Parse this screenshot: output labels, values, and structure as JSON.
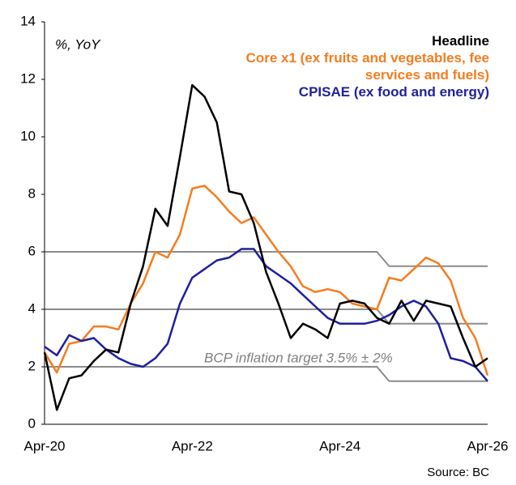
{
  "chart_data": {
    "type": "line",
    "subtitle": "%, YoY",
    "annotation": "BCP inflation target 3.5% ± 2%",
    "source": "Source: BC",
    "categories": [
      "Apr-20",
      null,
      null,
      null,
      null,
      null,
      null,
      null,
      null,
      null,
      null,
      null,
      "Apr-22",
      null,
      null,
      null,
      null,
      null,
      null,
      null,
      null,
      null,
      null,
      null,
      "Apr-24",
      null,
      null,
      null,
      null,
      null,
      null,
      null,
      null,
      null,
      null,
      null,
      "Apr-26"
    ],
    "ylim": [
      0,
      14
    ],
    "yticks": [
      0,
      2,
      4,
      6,
      8,
      10,
      12,
      14
    ],
    "series": [
      {
        "name": "Headline",
        "color": "#000000",
        "values": [
          2.5,
          0.5,
          1.6,
          1.7,
          2.2,
          2.6,
          2.5,
          4.2,
          5.5,
          7.5,
          6.9,
          9.3,
          11.8,
          11.4,
          10.5,
          8.1,
          8.0,
          7.0,
          5.3,
          4.2,
          3.0,
          3.5,
          3.3,
          3.0,
          4.2,
          4.3,
          4.2,
          3.7,
          3.5,
          4.3,
          3.6,
          4.3,
          4.2,
          4.1,
          3.0,
          2.0,
          2.3
        ]
      },
      {
        "name": "Core x1 (ex fruits and vegetables, fee services and fuels)",
        "color": "#f57c1f",
        "values": [
          2.5,
          1.8,
          2.8,
          2.9,
          3.4,
          3.4,
          3.3,
          4.2,
          4.9,
          6.0,
          5.8,
          6.6,
          8.2,
          8.3,
          7.9,
          7.4,
          7.0,
          7.2,
          6.6,
          6.0,
          5.5,
          4.8,
          4.6,
          4.7,
          4.6,
          4.2,
          4.1,
          4.0,
          5.1,
          5.0,
          5.4,
          5.8,
          5.6,
          5.0,
          3.7,
          3.0,
          1.7
        ]
      },
      {
        "name": "CPISAE (ex food and energy)",
        "color": "#1f1f9e",
        "values": [
          2.7,
          2.4,
          3.1,
          2.9,
          3.0,
          2.6,
          2.3,
          2.1,
          2.0,
          2.3,
          2.8,
          4.2,
          5.1,
          5.4,
          5.7,
          5.8,
          6.1,
          6.1,
          5.5,
          5.2,
          4.9,
          4.5,
          4.1,
          3.7,
          3.5,
          3.5,
          3.5,
          3.6,
          3.8,
          4.1,
          4.3,
          4.1,
          3.5,
          2.3,
          2.2,
          2.0,
          1.5
        ]
      }
    ],
    "target_lines": {
      "color": "#8c8c8c",
      "series": [
        {
          "values": [
            6,
            6,
            6,
            6,
            6,
            6,
            6,
            6,
            6,
            6,
            6,
            6,
            6,
            6,
            6,
            6,
            6,
            6,
            6,
            6,
            6,
            6,
            6,
            6,
            6,
            6,
            6,
            6,
            5.5,
            5.5,
            5.5,
            5.5,
            5.5,
            5.5,
            5.5,
            5.5,
            5.5
          ]
        },
        {
          "values": [
            4,
            4,
            4,
            4,
            4,
            4,
            4,
            4,
            4,
            4,
            4,
            4,
            4,
            4,
            4,
            4,
            4,
            4,
            4,
            4,
            4,
            4,
            4,
            4,
            4,
            4,
            4,
            4,
            3.5,
            3.5,
            3.5,
            3.5,
            3.5,
            3.5,
            3.5,
            3.5,
            3.5
          ]
        },
        {
          "values": [
            2,
            2,
            2,
            2,
            2,
            2,
            2,
            2,
            2,
            2,
            2,
            2,
            2,
            2,
            2,
            2,
            2,
            2,
            2,
            2,
            2,
            2,
            2,
            2,
            2,
            2,
            2,
            2,
            1.5,
            1.5,
            1.5,
            1.5,
            1.5,
            1.5,
            1.5,
            1.5,
            1.5
          ]
        }
      ]
    }
  }
}
